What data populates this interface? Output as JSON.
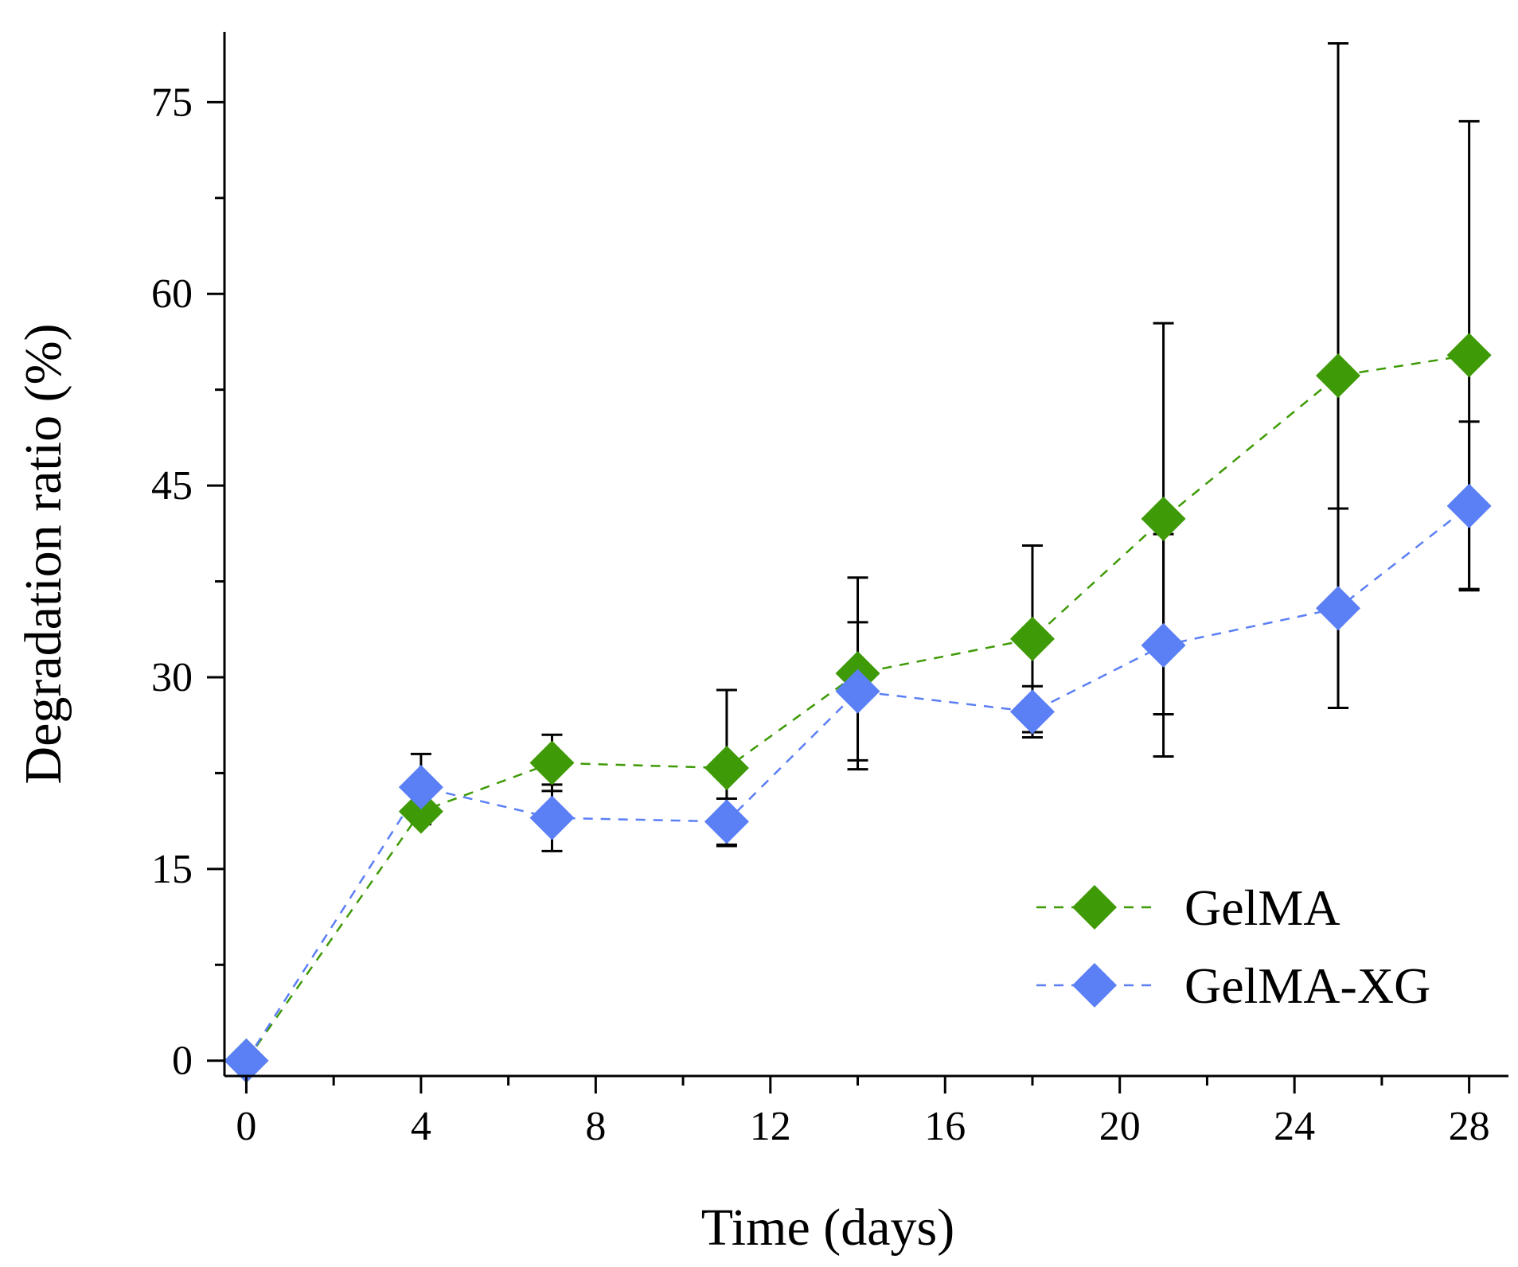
{
  "chart_data": {
    "type": "line",
    "title": "",
    "xlabel": "Time (days)",
    "ylabel": "Degradation ratio (%)",
    "xlim": [
      -0.5,
      28.9
    ],
    "ylim": [
      -1.2,
      80.5
    ],
    "xticks": [
      0,
      4,
      8,
      12,
      16,
      20,
      24,
      28
    ],
    "xticklabels": [
      "0",
      "4",
      "8",
      "12",
      "16",
      "20",
      "24",
      "28"
    ],
    "yticks": [
      0,
      15,
      30,
      45,
      60,
      75
    ],
    "yticklabels": [
      "0",
      "15",
      "30",
      "45",
      "60",
      "75"
    ],
    "grid": false,
    "legend_position": "bottom-right",
    "marker": "diamond",
    "line_style": "dashed",
    "x": [
      0,
      4,
      7,
      11,
      14,
      18,
      21,
      25,
      28
    ],
    "series": [
      {
        "name": "GelMA",
        "color": "#3e9a06",
        "values": [
          0,
          19.5,
          23.3,
          22.9,
          30.3,
          33.0,
          42.4,
          53.6,
          55.2
        ],
        "errors": [
          0,
          1.0,
          2.2,
          6.1,
          7.5,
          7.3,
          15.3,
          26.0,
          18.3
        ]
      },
      {
        "name": "GelMA-XG",
        "color": "#5b7ff5",
        "values": [
          0,
          21.4,
          19.0,
          18.7,
          28.9,
          27.3,
          32.5,
          35.4,
          43.4
        ],
        "errors": [
          0,
          2.6,
          2.6,
          1.8,
          5.4,
          2.0,
          8.7,
          7.8,
          6.6
        ]
      }
    ]
  }
}
